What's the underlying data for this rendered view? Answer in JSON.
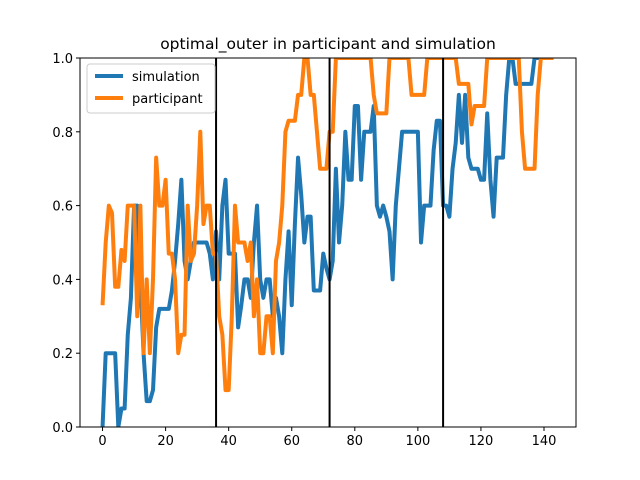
{
  "chart_data": {
    "type": "line",
    "title": "optimal_outer in participant and simulation",
    "x": [
      0,
      1,
      2,
      3,
      4,
      5,
      6,
      7,
      8,
      9,
      10,
      11,
      12,
      13,
      14,
      15,
      16,
      17,
      18,
      19,
      20,
      21,
      22,
      23,
      24,
      25,
      26,
      27,
      28,
      29,
      30,
      31,
      32,
      33,
      34,
      35,
      36,
      37,
      38,
      39,
      40,
      41,
      42,
      43,
      44,
      45,
      46,
      47,
      48,
      49,
      50,
      51,
      52,
      53,
      54,
      55,
      56,
      57,
      58,
      59,
      60,
      61,
      62,
      63,
      64,
      65,
      66,
      67,
      68,
      69,
      70,
      71,
      72,
      73,
      74,
      75,
      76,
      77,
      78,
      79,
      80,
      81,
      82,
      83,
      84,
      85,
      86,
      87,
      88,
      89,
      90,
      91,
      92,
      93,
      94,
      95,
      96,
      97,
      98,
      99,
      100,
      101,
      102,
      103,
      104,
      105,
      106,
      107,
      108,
      109,
      110,
      111,
      112,
      113,
      114,
      115,
      116,
      117,
      118,
      119,
      120,
      121,
      122,
      123,
      124,
      125,
      126,
      127,
      128,
      129,
      130,
      131,
      132,
      133,
      134,
      135,
      136,
      137,
      138,
      139,
      140,
      141,
      142,
      143
    ],
    "series": [
      {
        "name": "simulation",
        "color": "#1f77b4",
        "values": [
          0,
          0.2,
          0.2,
          0.2,
          0.2,
          0,
          0.05,
          0.05,
          0.25,
          0.35,
          0.6,
          0.6,
          0.4,
          0.2,
          0.07,
          0.07,
          0.1,
          0.27,
          0.32,
          0.32,
          0.32,
          0.32,
          0.37,
          0.45,
          0.55,
          0.67,
          0.45,
          0.4,
          0.45,
          0.5,
          0.5,
          0.5,
          0.5,
          0.5,
          0.47,
          0.4,
          0.53,
          0.4,
          0.6,
          0.67,
          0.47,
          0.47,
          0.47,
          0.27,
          0.33,
          0.4,
          0.4,
          0.35,
          0.5,
          0.6,
          0.4,
          0.35,
          0.4,
          0.4,
          0.3,
          0.35,
          0.3,
          0.2,
          0.4,
          0.53,
          0.33,
          0.55,
          0.73,
          0.63,
          0.5,
          0.57,
          0.57,
          0.37,
          0.37,
          0.37,
          0.47,
          0.43,
          0.4,
          0.45,
          0.7,
          0.5,
          0.6,
          0.8,
          0.67,
          0.67,
          0.87,
          0.87,
          0.67,
          0.8,
          0.8,
          0.8,
          0.87,
          0.6,
          0.57,
          0.6,
          0.57,
          0.53,
          0.4,
          0.6,
          0.7,
          0.8,
          0.8,
          0.8,
          0.8,
          0.8,
          0.8,
          0.5,
          0.6,
          0.6,
          0.6,
          0.75,
          0.83,
          0.83,
          0.6,
          0.6,
          0.57,
          0.7,
          0.77,
          0.9,
          0.77,
          0.9,
          0.73,
          0.7,
          0.7,
          0.7,
          0.67,
          0.67,
          0.85,
          0.67,
          0.57,
          0.73,
          0.73,
          0.73,
          0.9,
          1,
          1,
          0.93,
          0.93,
          0.93,
          0.93,
          0.93,
          0.93,
          1,
          1,
          1,
          1,
          1,
          1,
          1
        ]
      },
      {
        "name": "participant",
        "color": "#ff7f0e",
        "values": [
          0.33,
          0.5,
          0.6,
          0.58,
          0.38,
          0.38,
          0.48,
          0.45,
          0.6,
          0.6,
          0.6,
          0.3,
          0.6,
          0.2,
          0.4,
          0.2,
          0.4,
          0.73,
          0.6,
          0.6,
          0.67,
          0.47,
          0.47,
          0.4,
          0.2,
          0.25,
          0.25,
          0.6,
          0.45,
          0.47,
          0.6,
          0.8,
          0.55,
          0.6,
          0.6,
          0.47,
          0.47,
          0.3,
          0.25,
          0.1,
          0.1,
          0.3,
          0.6,
          0.5,
          0.5,
          0.5,
          0.45,
          0.5,
          0.3,
          0.4,
          0.2,
          0.2,
          0.3,
          0.3,
          0.2,
          0.45,
          0.5,
          0.6,
          0.8,
          0.83,
          0.83,
          0.83,
          0.9,
          0.9,
          1,
          1,
          0.9,
          0.9,
          0.8,
          0.7,
          0.7,
          0.7,
          0.8,
          0.8,
          1,
          1,
          1,
          1,
          1,
          1,
          1,
          1,
          1,
          1,
          1,
          1,
          0.9,
          0.85,
          0.85,
          0.85,
          0.85,
          1,
          1,
          1,
          1,
          1,
          1,
          1,
          0.9,
          0.9,
          0.9,
          0.9,
          0.9,
          1,
          1,
          1,
          1,
          1,
          1,
          1,
          1,
          1,
          1,
          0.93,
          0.93,
          0.93,
          0.93,
          0.82,
          0.87,
          0.87,
          0.87,
          0.87,
          1,
          1,
          1,
          1,
          1,
          1,
          1,
          1,
          1,
          1,
          1,
          0.8,
          0.7,
          0.7,
          0.7,
          0.7,
          0.9,
          1,
          1,
          1,
          1,
          1
        ]
      }
    ],
    "vlines": [
      36,
      72,
      108
    ],
    "vline_color": "#000000",
    "xlim": [
      -7.15,
      150.15
    ],
    "ylim": [
      0,
      1
    ],
    "xticks": [
      0,
      20,
      40,
      60,
      80,
      100,
      120,
      140
    ],
    "yticks": [
      {
        "value": 0,
        "label": "0.0"
      },
      {
        "value": 0.2,
        "label": "0.2"
      },
      {
        "value": 0.4,
        "label": "0.4"
      },
      {
        "value": 0.6,
        "label": "0.6"
      },
      {
        "value": 0.8,
        "label": "0.8"
      },
      {
        "value": 1,
        "label": "1.0"
      }
    ],
    "legend": "upper left"
  }
}
